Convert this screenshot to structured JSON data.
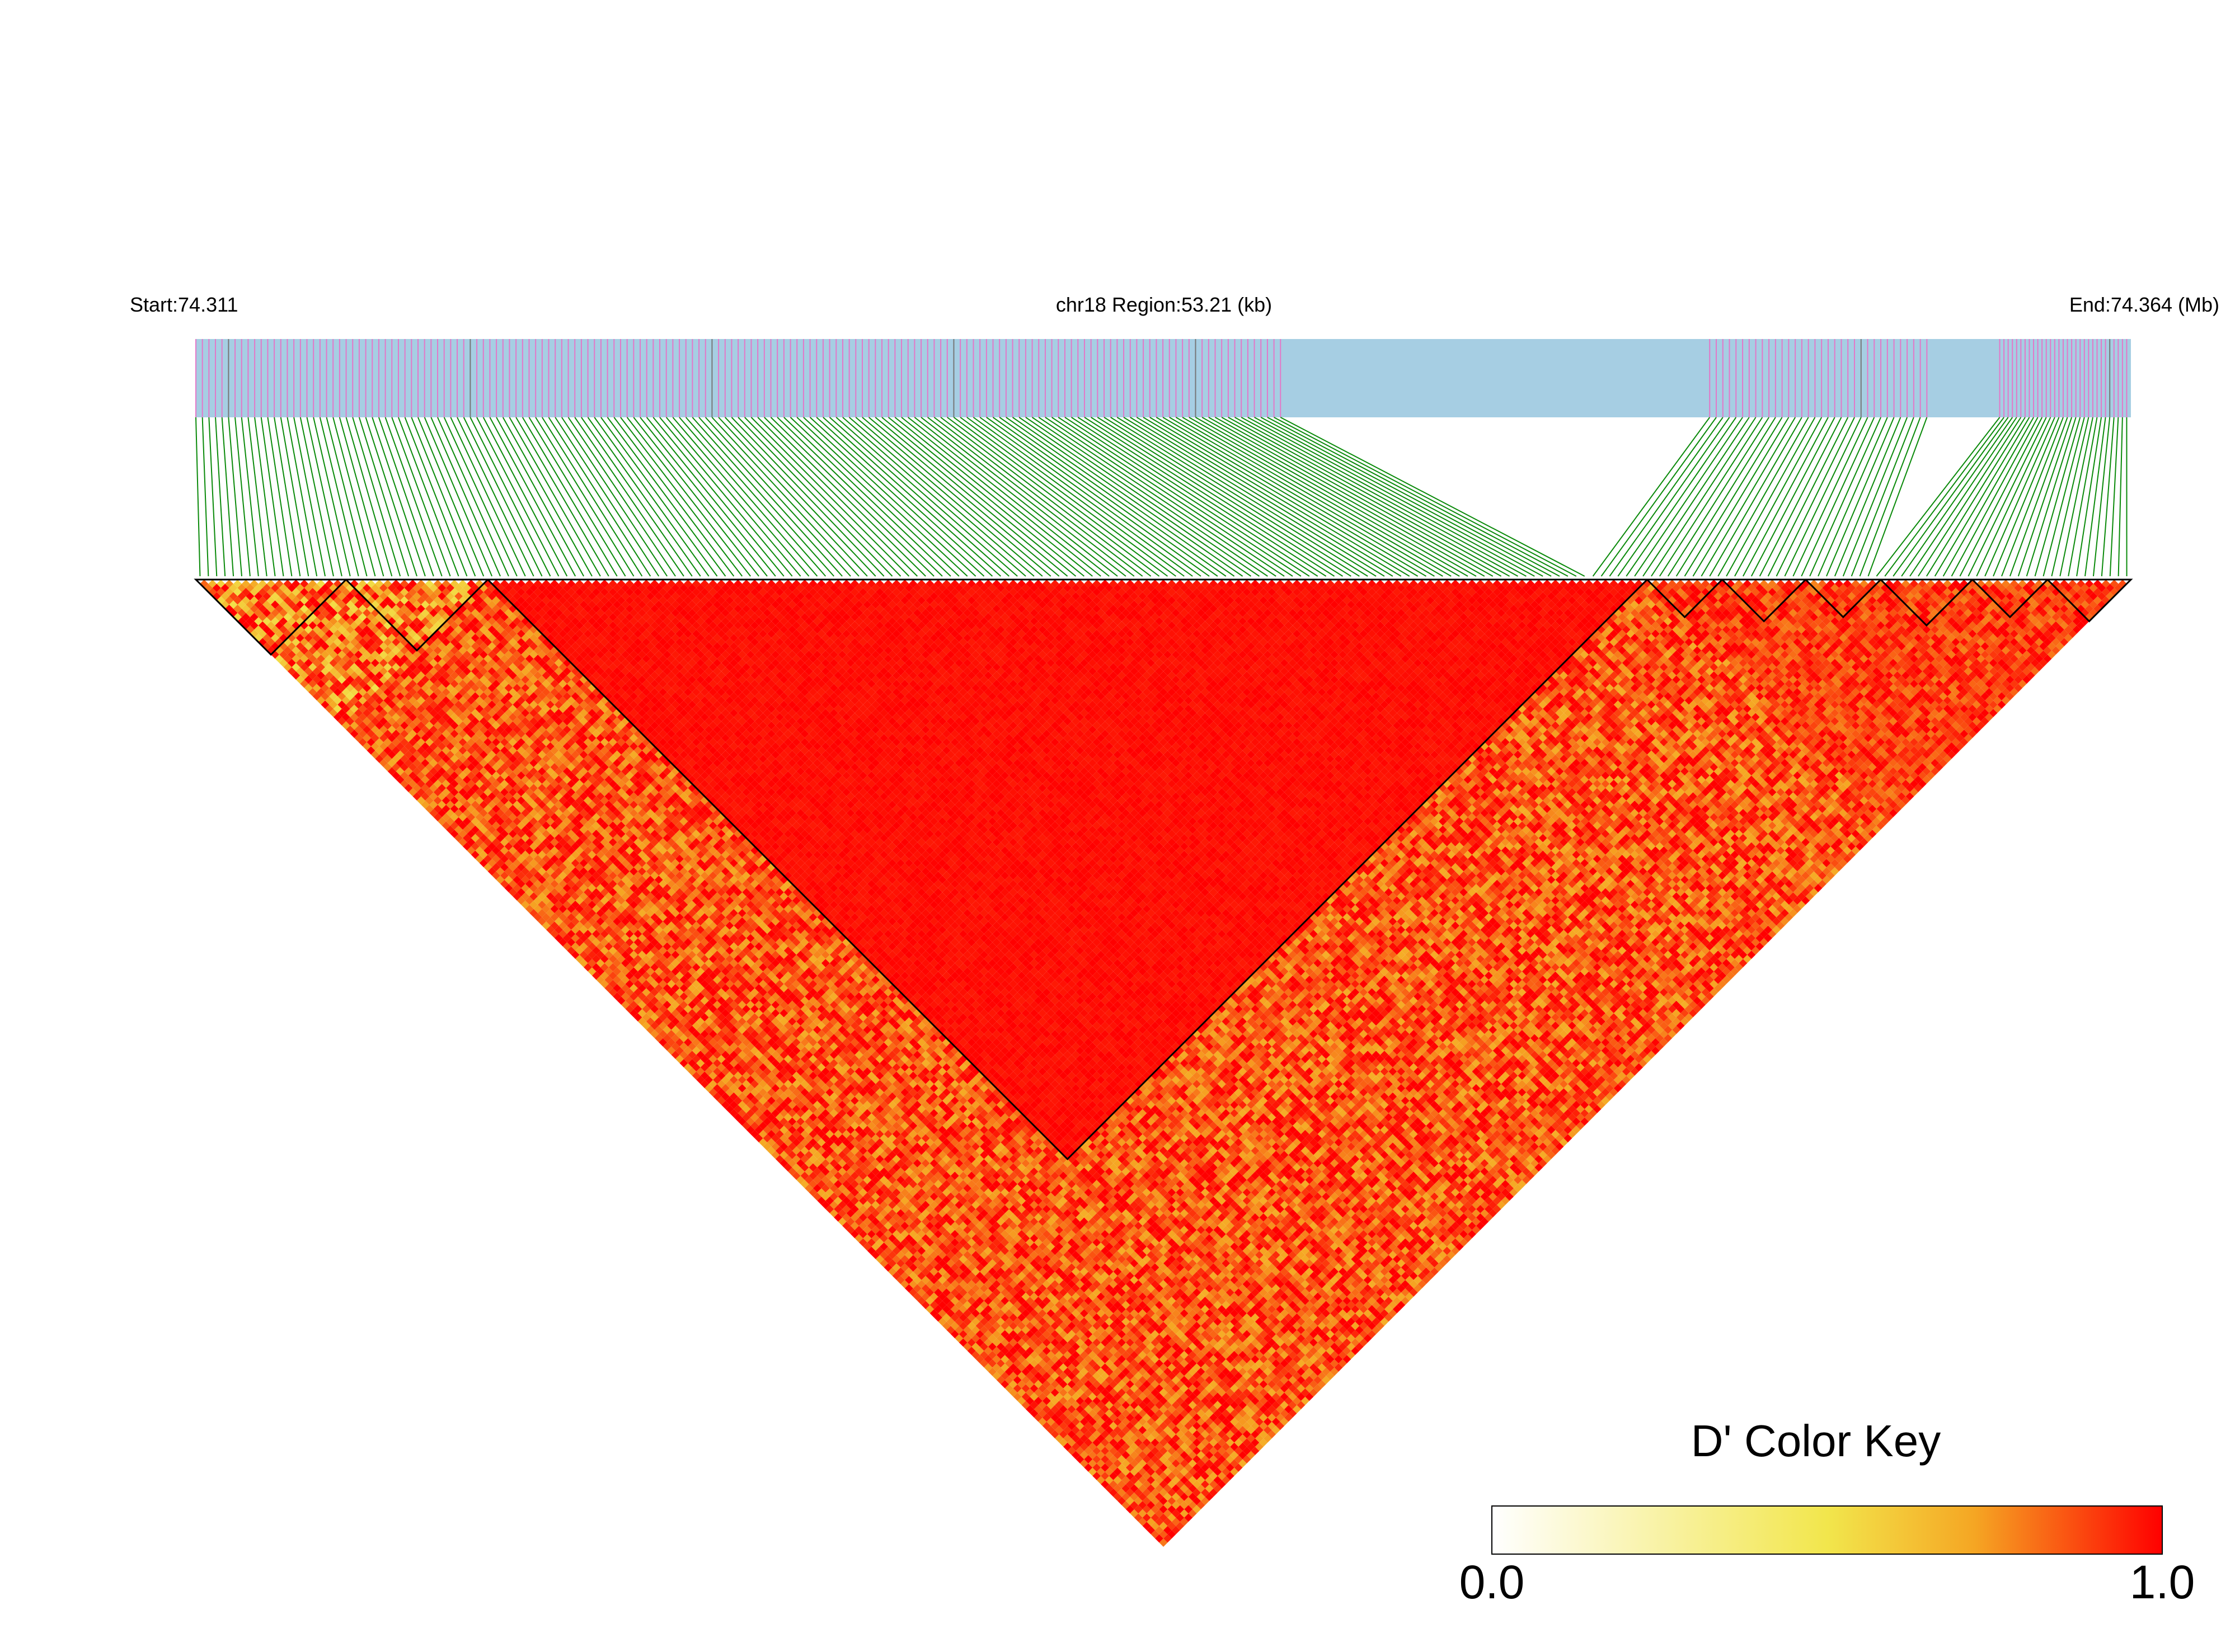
{
  "header": {
    "start_label": "Start:74.311",
    "region_label": "chr18 Region:53.21 (kb)",
    "end_label": "End:74.364 (Mb)"
  },
  "colors": {
    "track_bg": "#a6cee3",
    "snp_tick": "#e378c8",
    "connector": "#0a8a0a",
    "block_outline": "#000000",
    "key_low": "#ffffff",
    "key_mid": "#f2e64c",
    "key_high": "#ff0000"
  },
  "color_key": {
    "title": "D' Color Key",
    "min_label": "0.0",
    "max_label": "1.0"
  },
  "chart_data": {
    "type": "heatmap",
    "description_source": "LD (D') heatmap of SNPs across the displayed region",
    "chromosome": "chr18",
    "start_mb": 74.311,
    "end_mb": 74.364,
    "region_kb": 53.21,
    "snp_count": 232,
    "value_range": [
      0.0,
      1.0
    ],
    "ld_blocks_snp_index_ranges": [
      [
        0,
        17
      ],
      [
        18,
        34
      ],
      [
        35,
        173
      ],
      [
        174,
        182
      ],
      [
        183,
        192
      ],
      [
        193,
        201
      ],
      [
        202,
        212
      ],
      [
        213,
        221
      ],
      [
        222,
        231
      ]
    ],
    "zones": [
      {
        "from_snp": 0,
        "to_snp": 34,
        "mean_d_prime": 0.78
      },
      {
        "from_snp": 35,
        "to_snp": 173,
        "mean_d_prime": 0.98
      },
      {
        "from_snp": 174,
        "to_snp": 231,
        "mean_d_prime": 0.9
      }
    ],
    "legend_position": "bottom-right"
  }
}
